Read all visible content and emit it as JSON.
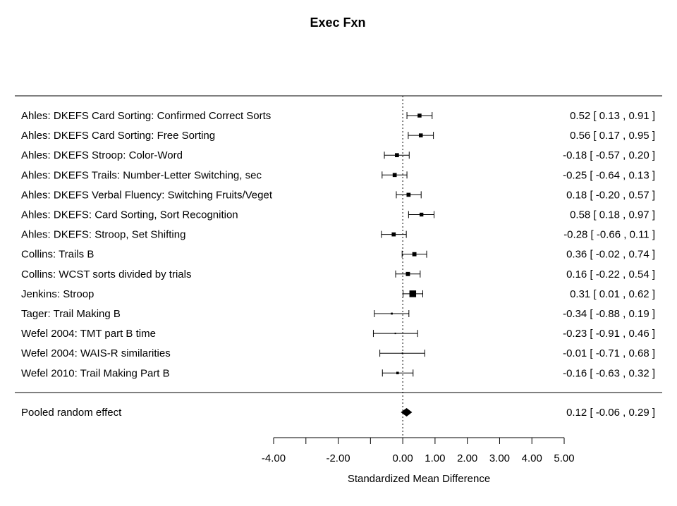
{
  "chart_data": {
    "type": "forest",
    "title": "Exec Fxn",
    "xlabel": "Standardized Mean Difference",
    "xlim": [
      -4.0,
      5.0
    ],
    "x_ticks": [
      -4,
      -3,
      -2,
      -1,
      0,
      1,
      2,
      3,
      4,
      5
    ],
    "x_tick_labels": [
      "-4.00",
      "-2.00",
      "0.00",
      "1.00",
      "2.00",
      "3.00",
      "4.00",
      "5.00"
    ],
    "x_tick_label_values": [
      -4,
      -2,
      0,
      1,
      2,
      3,
      4,
      5
    ],
    "reference_line": 0,
    "studies": [
      {
        "label": "Ahles: DKEFS Card Sorting: Confirmed Correct Sorts",
        "estimate": 0.52,
        "lower": 0.13,
        "upper": 0.91,
        "text": "0.52 [  0.13 , 0.91 ]"
      },
      {
        "label": "Ahles: DKEFS Card Sorting: Free Sorting",
        "estimate": 0.56,
        "lower": 0.17,
        "upper": 0.95,
        "text": "0.56 [  0.17 , 0.95 ]"
      },
      {
        "label": "Ahles: DKEFS Stroop: Color-Word",
        "estimate": -0.18,
        "lower": -0.57,
        "upper": 0.2,
        "text": "-0.18 [ -0.57 , 0.20 ]"
      },
      {
        "label": "Ahles: DKEFS Trails: Number-Letter Switching, sec",
        "estimate": -0.25,
        "lower": -0.64,
        "upper": 0.13,
        "text": "-0.25 [ -0.64 , 0.13 ]"
      },
      {
        "label": "Ahles: DKEFS Verbal Fluency: Switching Fruits/Veget",
        "estimate": 0.18,
        "lower": -0.2,
        "upper": 0.57,
        "text": "0.18 [ -0.20 , 0.57 ]"
      },
      {
        "label": "Ahles: DKEFS: Card Sorting, Sort Recognition",
        "estimate": 0.58,
        "lower": 0.18,
        "upper": 0.97,
        "text": "0.58 [  0.18 , 0.97 ]"
      },
      {
        "label": "Ahles: DKEFS: Stroop, Set Shifting",
        "estimate": -0.28,
        "lower": -0.66,
        "upper": 0.11,
        "text": "-0.28 [ -0.66 , 0.11 ]"
      },
      {
        "label": "Collins: Trails B",
        "estimate": 0.36,
        "lower": -0.02,
        "upper": 0.74,
        "text": "0.36 [ -0.02 , 0.74 ]"
      },
      {
        "label": "Collins: WCST sorts divided by trials",
        "estimate": 0.16,
        "lower": -0.22,
        "upper": 0.54,
        "text": "0.16 [ -0.22 , 0.54 ]"
      },
      {
        "label": "Jenkins: Stroop",
        "estimate": 0.31,
        "lower": 0.01,
        "upper": 0.62,
        "text": "0.31 [  0.01 , 0.62 ]"
      },
      {
        "label": "Tager: Trail Making B",
        "estimate": -0.34,
        "lower": -0.88,
        "upper": 0.19,
        "text": "-0.34 [ -0.88 , 0.19 ]"
      },
      {
        "label": "Wefel 2004: TMT part B time",
        "estimate": -0.23,
        "lower": -0.91,
        "upper": 0.46,
        "text": "-0.23 [ -0.91 , 0.46 ]"
      },
      {
        "label": "Wefel 2004: WAIS-R similarities",
        "estimate": -0.01,
        "lower": -0.71,
        "upper": 0.68,
        "text": "-0.01 [ -0.71 , 0.68 ]"
      },
      {
        "label": "Wefel 2010: Trail Making Part B",
        "estimate": -0.16,
        "lower": -0.63,
        "upper": 0.32,
        "text": "-0.16 [ -0.63 , 0.32 ]"
      }
    ],
    "pooled": {
      "label": "Pooled random effect",
      "estimate": 0.12,
      "lower": -0.06,
      "upper": 0.29,
      "text": "0.12 [ -0.06 , 0.29 ]"
    }
  }
}
